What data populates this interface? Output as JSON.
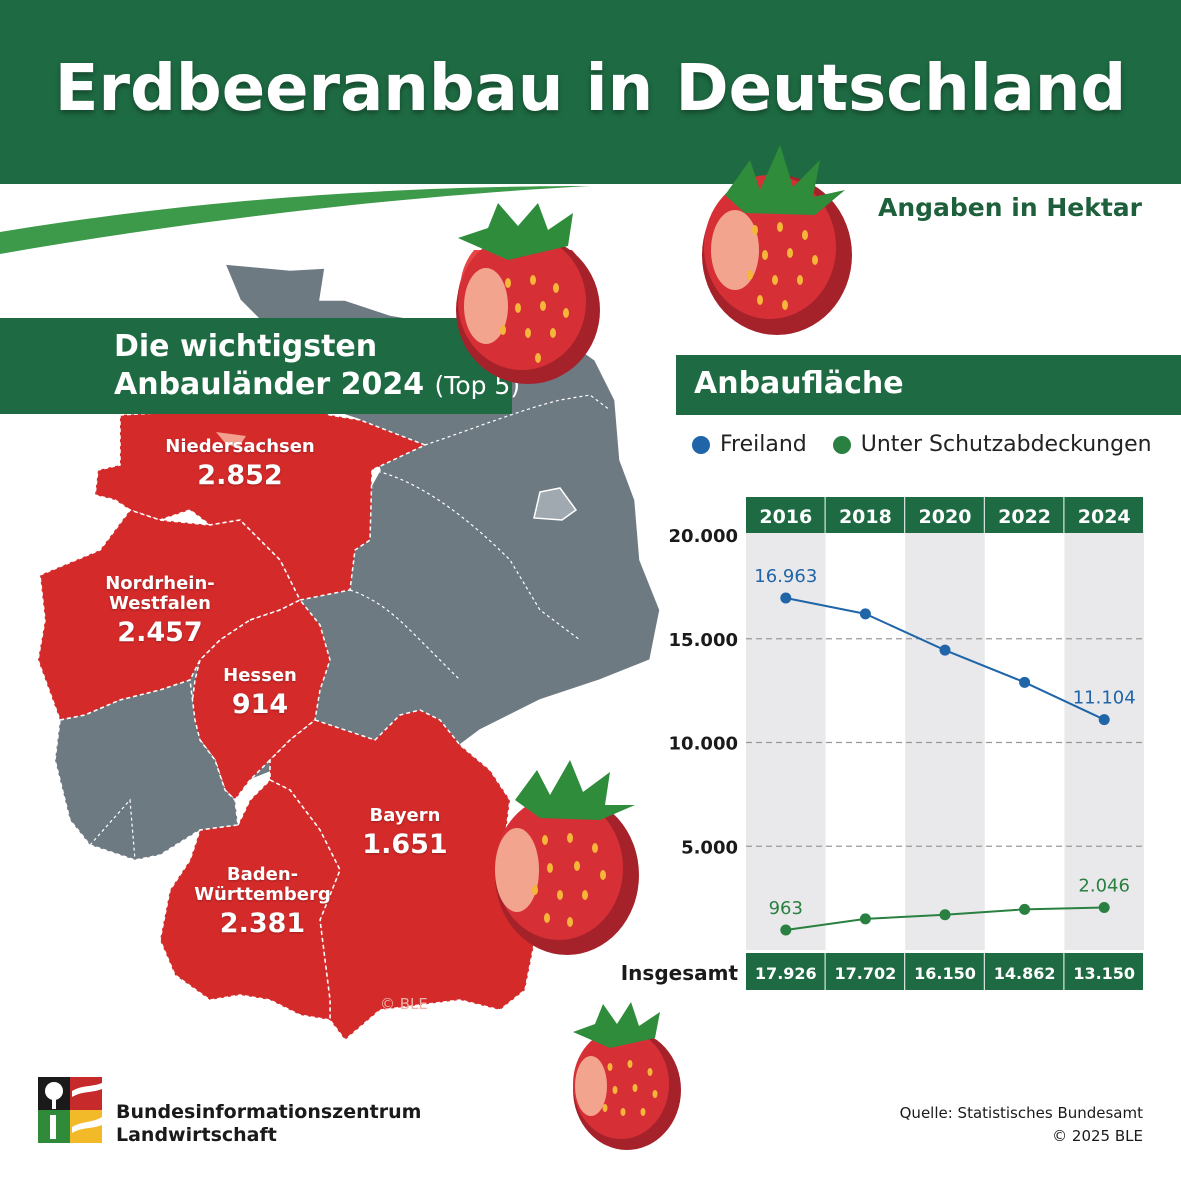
{
  "header": {
    "title": "Erdbeeranbau in Deutschland"
  },
  "unit_note": "Angaben in Hektar",
  "top5": {
    "title_line1": "Die wichtigsten",
    "title_line2": "Anbauländer 2024",
    "title_suffix": "(Top 5)",
    "states": [
      {
        "name": "Niedersachsen",
        "value": "2.852"
      },
      {
        "name_line1": "Nordrhein-",
        "name_line2": "Westfalen",
        "value": "2.457"
      },
      {
        "name": "Hessen",
        "value": "914"
      },
      {
        "name": "Bayern",
        "value": "1.651"
      },
      {
        "name_line1": "Baden-",
        "name_line2": "Württemberg",
        "value": "2.381"
      }
    ],
    "copyright": "© BLE"
  },
  "colors": {
    "brand_green": "#1e6b43",
    "top5_red": "#d42a2a",
    "other_grey": "#6e7a82",
    "freiland_blue": "#1f65a8",
    "schutz_green": "#2a8040"
  },
  "chart_data": {
    "type": "line",
    "title": "Anbaufläche",
    "x": [
      "2016",
      "2018",
      "2020",
      "2022",
      "2024"
    ],
    "ylim": [
      0,
      20000
    ],
    "yticks": [
      "20.000",
      "15.000",
      "10.000",
      "5.000"
    ],
    "series": [
      {
        "name": "Freiland",
        "values": [
          16963,
          16200,
          14450,
          12900,
          11104
        ],
        "labels": {
          "0": "16.963",
          "4": "11.104"
        }
      },
      {
        "name": "Unter Schutzabdeckungen",
        "values": [
          963,
          1500,
          1700,
          1960,
          2046
        ],
        "labels": {
          "0": "963",
          "4": "2.046"
        }
      }
    ],
    "total_label": "Insgesamt",
    "totals": [
      "17.926",
      "17.702",
      "16.150",
      "14.862",
      "13.150"
    ],
    "grid": "dashed-horizontal"
  },
  "footer": {
    "org_line1": "Bundesinformationszentrum",
    "org_line2": "Landwirtschaft",
    "source_line1": "Quelle: Statistisches Bundesamt",
    "source_line2": "© 2025 BLE"
  }
}
